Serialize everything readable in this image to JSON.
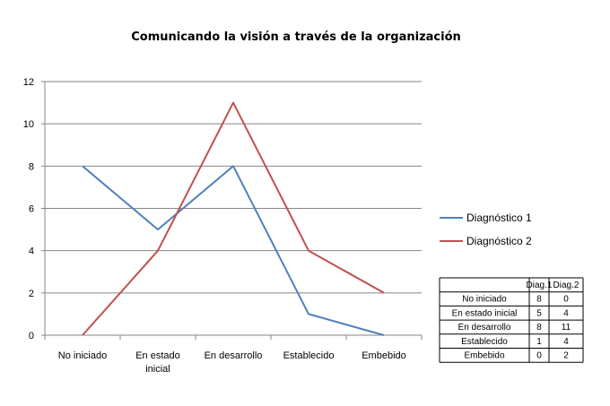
{
  "chart_data": {
    "type": "line",
    "title": "Comunicando la visión a través de la organización",
    "categories": [
      [
        "No iniciado"
      ],
      [
        "En estado",
        "inicial"
      ],
      [
        "En desarrollo"
      ],
      [
        "Establecido"
      ],
      [
        "Embebido"
      ]
    ],
    "series": [
      {
        "name": "Diagnóstico 1",
        "color": "#4F81BD",
        "values": [
          8,
          5,
          8,
          1,
          0
        ]
      },
      {
        "name": "Diagnóstico 2",
        "color": "#C0504D",
        "values": [
          0,
          4,
          11,
          4,
          2
        ]
      }
    ],
    "ylim": [
      0,
      12
    ],
    "yticks": [
      0,
      2,
      4,
      6,
      8,
      10,
      12
    ],
    "grid": true,
    "legend_position": "right",
    "data_table": {
      "headers": [
        "Diag.1",
        "Diag.2"
      ],
      "rows": [
        {
          "label": "No iniciado",
          "values": [
            8,
            0
          ]
        },
        {
          "label": "En estado inicial",
          "values": [
            5,
            4
          ]
        },
        {
          "label": "En desarrollo",
          "values": [
            8,
            11
          ]
        },
        {
          "label": "Establecido",
          "values": [
            1,
            4
          ]
        },
        {
          "label": "Embebido",
          "values": [
            0,
            2
          ]
        }
      ]
    }
  }
}
